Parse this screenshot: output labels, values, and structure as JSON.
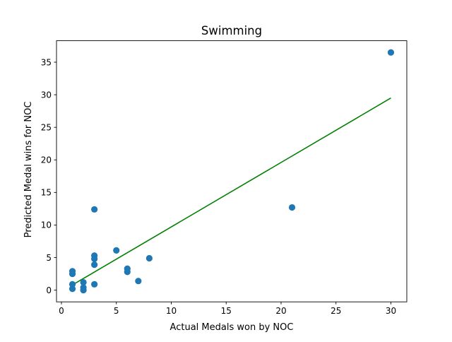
{
  "chart_data": {
    "type": "scatter",
    "title": "Swimming",
    "xlabel": "Actual Medals won by NOC",
    "ylabel": "Predicted Medal wins for NOC",
    "xlim": [
      -0.45,
      31.45
    ],
    "ylim": [
      -1.8,
      38.3
    ],
    "xticks": [
      0,
      5,
      10,
      15,
      20,
      25,
      30
    ],
    "yticks": [
      0,
      5,
      10,
      15,
      20,
      25,
      30,
      35
    ],
    "grid": false,
    "legend": "none",
    "points": [
      {
        "x": 30,
        "y": 36.5
      },
      {
        "x": 21,
        "y": 12.7
      },
      {
        "x": 8,
        "y": 4.9
      },
      {
        "x": 7,
        "y": 1.4
      },
      {
        "x": 6,
        "y": 3.3
      },
      {
        "x": 6,
        "y": 2.8
      },
      {
        "x": 5,
        "y": 6.1
      },
      {
        "x": 3,
        "y": 12.4
      },
      {
        "x": 3,
        "y": 5.3
      },
      {
        "x": 3,
        "y": 4.8
      },
      {
        "x": 3,
        "y": 3.9
      },
      {
        "x": 3,
        "y": 0.9
      },
      {
        "x": 2,
        "y": 1.2
      },
      {
        "x": 2,
        "y": 0.4
      },
      {
        "x": 2,
        "y": 0.0
      },
      {
        "x": 1,
        "y": 2.9
      },
      {
        "x": 1,
        "y": 2.5
      },
      {
        "x": 1,
        "y": 0.9
      },
      {
        "x": 1,
        "y": 0.2
      }
    ],
    "fit_line": {
      "x": [
        1,
        30
      ],
      "y": [
        0.8,
        29.5
      ]
    },
    "colors": {
      "points": "#1f77b4",
      "fit_line": "#008000",
      "axes": "#000000"
    }
  }
}
